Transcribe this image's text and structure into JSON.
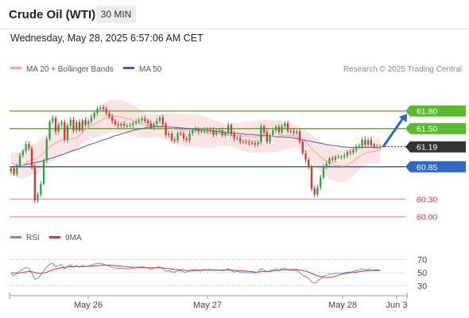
{
  "header": {
    "title": "Crude Oil (WTI)",
    "timeframe": "30 MIN",
    "datetime": "Wednesday, May 28, 2025 6:57:06 AM CET"
  },
  "legend": {
    "ma20_label": "MA 20 + Bollinger Bands",
    "ma50_label": "MA 50",
    "credit": "Research © 2025 Trading Central",
    "rsi_label": "RSI",
    "rsi_ma_label": "9MA"
  },
  "colors": {
    "up": "#2f9e44",
    "down": "#e03131",
    "ma20": "#f4a3a3",
    "band_fill": "#fde4e4",
    "ma50": "#4a5f9c",
    "resistance": "#5cb82e",
    "support": "#2f68c4",
    "target_line": "#f08a8a",
    "current": "#333333",
    "arrow": "#2f68c4",
    "rsi": "#6a8fdc",
    "rsi_ma": "#e03131"
  },
  "chart_data": [
    {
      "type": "candlestick",
      "title": "Crude Oil (WTI)",
      "timeframe": "30 MIN",
      "x_ticks": [
        "May 26",
        "May 27",
        "May 28",
        "Jun 3"
      ],
      "ylim": [
        59.9,
        62.2
      ],
      "levels": [
        {
          "label": "61.80",
          "value": 61.8,
          "kind": "resistance"
        },
        {
          "label": "61.50",
          "value": 61.5,
          "kind": "resistance"
        },
        {
          "label": "61.19",
          "value": 61.19,
          "kind": "current"
        },
        {
          "label": "60.85",
          "value": 60.85,
          "kind": "support"
        },
        {
          "label": "60.30",
          "value": 60.3,
          "kind": "target"
        },
        {
          "label": "60.00",
          "value": 60.0,
          "kind": "target"
        }
      ],
      "projection": {
        "from": 61.19,
        "to": 61.75,
        "direction": "up"
      },
      "series": [
        {
          "name": "Price",
          "values": [
            60.82,
            60.73,
            60.87,
            61.04,
            61.12,
            61.24,
            61.16,
            60.85,
            60.28,
            60.38,
            60.56,
            60.96,
            61.32,
            61.62,
            61.68,
            61.45,
            61.57,
            61.61,
            61.31,
            61.55,
            61.65,
            61.47,
            61.61,
            61.47,
            61.64,
            61.57,
            61.62,
            61.69,
            61.77,
            61.84,
            61.86,
            61.83,
            61.76,
            61.7,
            61.63,
            61.57,
            61.55,
            61.58,
            61.55,
            61.55,
            61.56,
            61.59,
            61.62,
            61.64,
            61.67,
            61.63,
            61.59,
            61.52,
            61.58,
            61.63,
            61.69,
            61.57,
            61.39,
            61.41,
            61.31,
            61.3,
            61.42,
            61.41,
            61.33,
            61.3,
            61.42,
            61.47,
            61.49,
            61.45,
            61.46,
            61.48,
            61.46,
            61.48,
            61.4,
            61.46,
            61.47,
            61.39,
            61.43,
            61.56,
            61.41,
            61.33,
            61.34,
            61.28,
            61.28,
            61.27,
            61.26,
            61.25,
            61.23,
            61.27,
            61.54,
            61.44,
            61.28,
            61.39,
            61.47,
            61.53,
            61.44,
            61.54,
            61.59,
            61.46,
            61.46,
            61.43,
            61.45,
            61.28,
            61.08,
            60.97,
            60.84,
            60.48,
            60.38,
            60.5,
            60.67,
            60.85,
            60.9,
            60.99,
            60.97,
            61.02,
            61.02,
            61.02,
            61.04,
            61.1,
            61.09,
            61.14,
            61.19,
            61.2,
            61.31,
            61.23,
            61.31,
            61.22,
            61.19,
            61.19,
            61.18
          ]
        },
        {
          "name": "MA 20",
          "values": [
            60.92,
            60.9,
            60.88,
            60.87,
            60.88,
            60.91,
            60.95,
            60.97,
            60.98,
            61.0,
            61.04,
            61.09,
            61.14,
            61.19,
            61.23,
            61.25,
            61.28,
            61.3,
            61.31,
            61.32,
            61.32,
            61.33,
            61.34,
            61.38,
            61.43,
            61.48,
            61.52,
            61.55,
            61.57,
            61.6,
            61.63,
            61.66,
            61.68,
            61.71,
            61.72,
            61.71,
            61.71,
            61.7,
            61.68,
            61.67,
            61.66,
            61.64,
            61.61,
            61.59,
            61.58,
            61.56,
            61.55,
            61.55,
            61.55,
            61.55,
            61.55,
            61.54,
            61.53,
            61.52,
            61.51,
            61.49,
            61.49,
            61.48,
            61.48,
            61.47,
            61.47,
            61.47,
            61.47,
            61.46,
            61.45,
            61.44,
            61.43,
            61.42,
            61.41,
            61.41,
            61.41,
            61.4,
            61.39,
            61.39,
            61.38,
            61.38,
            61.38,
            61.37,
            61.37,
            61.37,
            61.36,
            61.36,
            61.36,
            61.36,
            61.36,
            61.37,
            61.37,
            61.37,
            61.37,
            61.37,
            61.37,
            61.38,
            61.38,
            61.38,
            61.38,
            61.38,
            61.36,
            61.34,
            61.31,
            61.27,
            61.22,
            61.16,
            61.11,
            61.06,
            61.02,
            60.98,
            60.95,
            60.92,
            60.9,
            60.88,
            60.87,
            60.86,
            60.86,
            60.88,
            60.91,
            60.94,
            60.98,
            61.02,
            61.05,
            61.08,
            61.09,
            61.1,
            61.11,
            61.12,
            61.13
          ]
        },
        {
          "name": "MA 50",
          "values": [
            60.84,
            60.85,
            60.86,
            60.87,
            60.88,
            60.89,
            60.9,
            60.91,
            60.92,
            60.93,
            60.94,
            60.96,
            60.97,
            60.99,
            61.0,
            61.02,
            61.04,
            61.05,
            61.07,
            61.09,
            61.11,
            61.13,
            61.14,
            61.16,
            61.18,
            61.2,
            61.22,
            61.24,
            61.25,
            61.27,
            61.29,
            61.31,
            61.32,
            61.34,
            61.36,
            61.38,
            61.39,
            61.41,
            61.42,
            61.44,
            61.45,
            61.47,
            61.48,
            61.49,
            61.5,
            61.51,
            61.52,
            61.52,
            61.53,
            61.53,
            61.53,
            61.53,
            61.53,
            61.53,
            61.52,
            61.52,
            61.52,
            61.51,
            61.51,
            61.5,
            61.5,
            61.49,
            61.49,
            61.48,
            61.48,
            61.47,
            61.47,
            61.46,
            61.46,
            61.45,
            61.45,
            61.44,
            61.44,
            61.43,
            61.43,
            61.42,
            61.42,
            61.41,
            61.41,
            61.4,
            61.4,
            61.4,
            61.39,
            61.39,
            61.38,
            61.38,
            61.38,
            61.37,
            61.37,
            61.36,
            61.36,
            61.36,
            61.35,
            61.35,
            61.35,
            61.34,
            61.33,
            61.32,
            61.31,
            61.3,
            61.29,
            61.28,
            61.27,
            61.26,
            61.25,
            61.24,
            61.23,
            61.22,
            61.21,
            61.21,
            61.2,
            61.19,
            61.19,
            61.18,
            61.18,
            61.18,
            61.18,
            61.18,
            61.18,
            61.18,
            61.18,
            61.18,
            61.18,
            61.18,
            61.18
          ]
        }
      ]
    },
    {
      "type": "line",
      "x_ticks": [
        "May 26",
        "May 27",
        "May 28",
        "Jun 3"
      ],
      "y_ticks": [
        "70",
        "50",
        "30"
      ],
      "ylim": [
        20,
        80
      ],
      "series": [
        {
          "name": "RSI",
          "values": [
            48,
            45,
            49,
            53,
            55,
            58,
            56,
            49,
            40,
            42,
            46,
            53,
            59,
            63,
            64,
            59,
            61,
            62,
            56,
            60,
            62,
            58,
            61,
            58,
            61,
            59,
            60,
            61,
            63,
            64,
            64,
            63,
            61,
            60,
            58,
            57,
            56,
            57,
            56,
            56,
            56,
            57,
            58,
            58,
            59,
            58,
            57,
            55,
            57,
            58,
            59,
            56,
            52,
            53,
            51,
            51,
            53,
            53,
            51,
            51,
            53,
            54,
            55,
            54,
            54,
            55,
            54,
            55,
            53,
            54,
            54,
            53,
            54,
            56,
            53,
            51,
            52,
            51,
            51,
            50,
            50,
            50,
            50,
            51,
            56,
            54,
            51,
            53,
            54,
            56,
            54,
            56,
            57,
            54,
            54,
            53,
            54,
            50,
            46,
            44,
            42,
            36,
            34,
            37,
            41,
            45,
            46,
            48,
            48,
            49,
            49,
            49,
            50,
            51,
            51,
            52,
            53,
            54,
            56,
            54,
            56,
            54,
            53,
            53,
            53
          ]
        },
        {
          "name": "9MA",
          "values": [
            50,
            49.4,
            49.3,
            49.7,
            50.3,
            51.2,
            51.8,
            51.4,
            50.1,
            49.2,
            48.9,
            49.4,
            50.6,
            52.5,
            54.4,
            55.4,
            56.6,
            57.8,
            58,
            58.5,
            59.1,
            59,
            59.3,
            59.2,
            59.4,
            59.4,
            59.5,
            59.7,
            60.2,
            60.7,
            61.1,
            61.3,
            61.4,
            61.3,
            61.1,
            60.7,
            60.2,
            59.8,
            59.2,
            58.8,
            58.4,
            58.1,
            57.9,
            57.7,
            57.7,
            57.7,
            57.6,
            57.3,
            57.3,
            57.3,
            57.4,
            57.2,
            56.5,
            56.1,
            55.4,
            54.8,
            54.6,
            54.4,
            53.8,
            53.3,
            53.1,
            53.1,
            53.2,
            53.3,
            53.4,
            53.7,
            53.8,
            54,
            53.9,
            54,
            54,
            53.8,
            53.8,
            54.1,
            53.9,
            53.6,
            53.4,
            53.1,
            52.8,
            52.4,
            51.9,
            51.4,
            51.1,
            51,
            51.6,
            51.9,
            51.9,
            52.2,
            52.6,
            53.3,
            53.6,
            54.1,
            54.6,
            54.7,
            54.8,
            54.8,
            54.8,
            54.3,
            53.3,
            52.2,
            51,
            49,
            46.9,
            45.3,
            44.1,
            43.3,
            42.7,
            42.9,
            43.7,
            44.9,
            46.2,
            47.3,
            48.4,
            49.3,
            49.8,
            50.4,
            51,
            51.6,
            52.3,
            52.7,
            53.2,
            53.5,
            53.7,
            53.8,
            53.9
          ]
        }
      ]
    }
  ]
}
